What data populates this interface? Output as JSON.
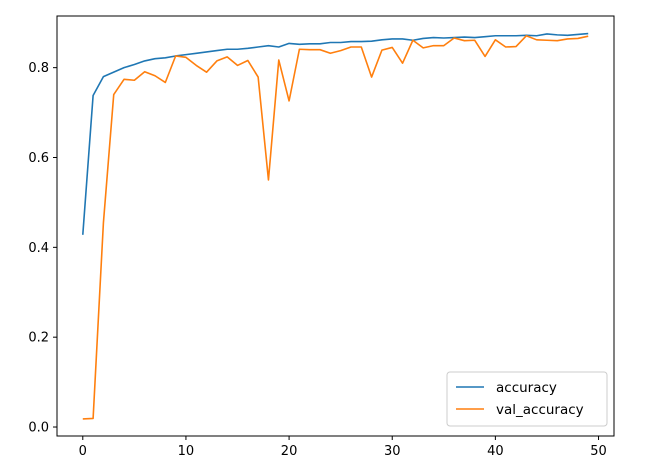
{
  "chart_data": {
    "type": "line",
    "title": "",
    "xlabel": "",
    "ylabel": "",
    "xlim": [
      -2.5,
      51.5
    ],
    "ylim": [
      -0.02,
      0.915
    ],
    "xticks": [
      "0",
      "10",
      "20",
      "30",
      "40",
      "50"
    ],
    "yticks": [
      "0.0",
      "0.2",
      "0.4",
      "0.6",
      "0.8"
    ],
    "grid": false,
    "legend_position": "lower-right",
    "x": [
      0,
      1,
      2,
      3,
      4,
      5,
      6,
      7,
      8,
      9,
      10,
      11,
      12,
      13,
      14,
      15,
      16,
      17,
      18,
      19,
      20,
      21,
      22,
      23,
      24,
      25,
      26,
      27,
      28,
      29,
      30,
      31,
      32,
      33,
      34,
      35,
      36,
      37,
      38,
      39,
      40,
      41,
      42,
      43,
      44,
      45,
      46,
      47,
      48,
      49
    ],
    "series": [
      {
        "name": "accuracy",
        "color": "#1f77b4",
        "values": [
          0.428,
          0.738,
          0.78,
          0.79,
          0.8,
          0.807,
          0.815,
          0.82,
          0.822,
          0.826,
          0.829,
          0.832,
          0.835,
          0.838,
          0.841,
          0.841,
          0.843,
          0.846,
          0.849,
          0.846,
          0.854,
          0.852,
          0.853,
          0.853,
          0.856,
          0.856,
          0.858,
          0.858,
          0.859,
          0.862,
          0.864,
          0.864,
          0.861,
          0.865,
          0.867,
          0.866,
          0.867,
          0.868,
          0.867,
          0.869,
          0.871,
          0.871,
          0.871,
          0.872,
          0.871,
          0.875,
          0.873,
          0.872,
          0.874,
          0.876
        ]
      },
      {
        "name": "val_accuracy",
        "color": "#ff7f0e",
        "values": [
          0.018,
          0.019,
          0.455,
          0.74,
          0.774,
          0.772,
          0.791,
          0.782,
          0.767,
          0.826,
          0.823,
          0.805,
          0.79,
          0.815,
          0.824,
          0.805,
          0.816,
          0.779,
          0.55,
          0.817,
          0.726,
          0.841,
          0.84,
          0.84,
          0.832,
          0.838,
          0.846,
          0.846,
          0.779,
          0.839,
          0.845,
          0.81,
          0.861,
          0.844,
          0.849,
          0.849,
          0.866,
          0.86,
          0.861,
          0.825,
          0.862,
          0.846,
          0.847,
          0.871,
          0.862,
          0.861,
          0.86,
          0.864,
          0.865,
          0.87
        ]
      }
    ]
  }
}
